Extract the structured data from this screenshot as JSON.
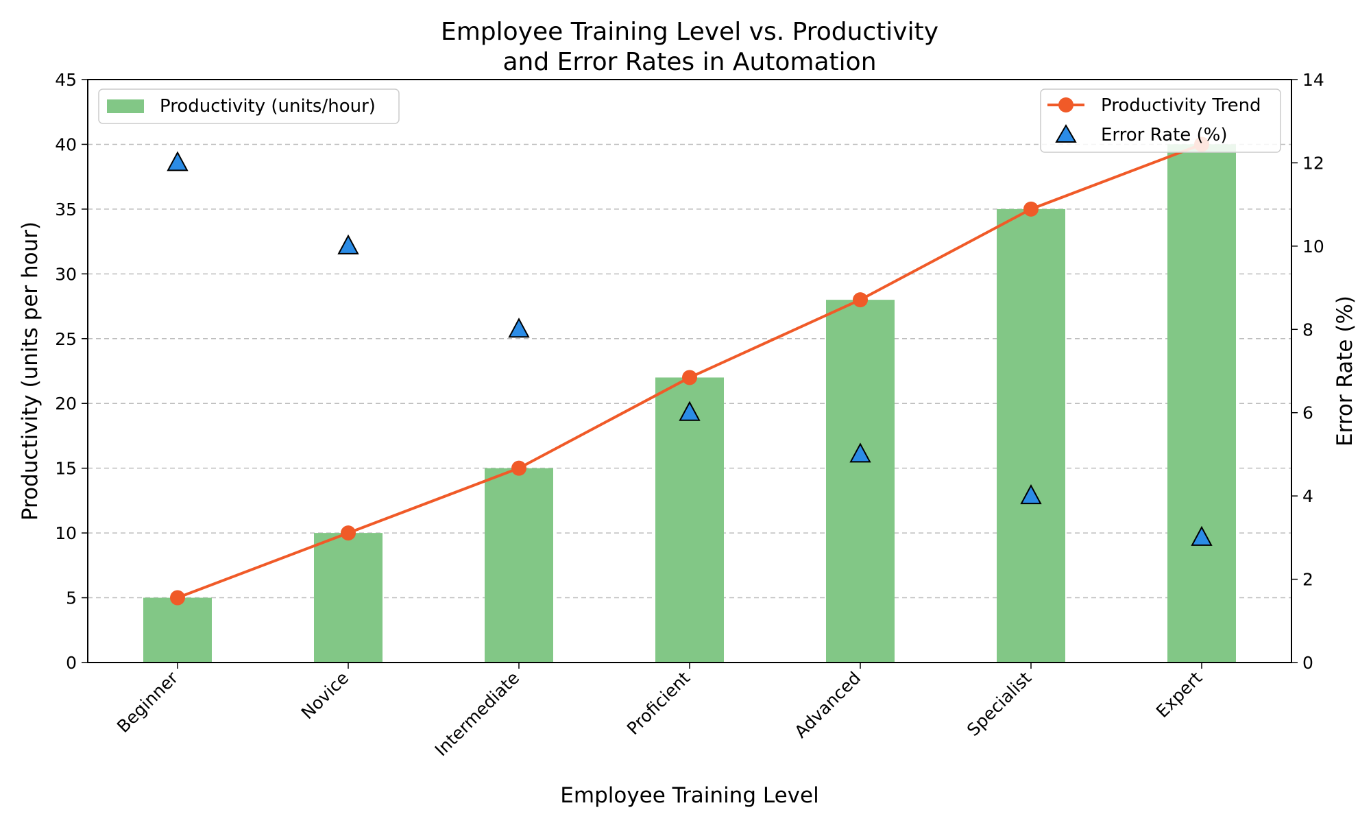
{
  "chart_data": {
    "type": "bar",
    "title_lines": [
      "Employee Training Level vs. Productivity",
      "and Error Rates in Automation"
    ],
    "xlabel": "Employee Training Level",
    "ylabel": "Productivity (units per hour)",
    "ylabel_right": "Error Rate (%)",
    "categories": [
      "Beginner",
      "Novice",
      "Intermediate",
      "Proficient",
      "Advanced",
      "Specialist",
      "Expert"
    ],
    "ylim": [
      0,
      45
    ],
    "yticks": [
      0,
      5,
      10,
      15,
      20,
      25,
      30,
      35,
      40,
      45
    ],
    "ylim_right": [
      0,
      14
    ],
    "yticks_right": [
      0,
      2,
      4,
      6,
      8,
      10,
      12,
      14
    ],
    "grid": "horizontal dashed",
    "series": [
      {
        "name": "Productivity (units/hour)",
        "kind": "bar",
        "axis": "left",
        "color": "#82c786",
        "values": [
          5,
          10,
          15,
          22,
          28,
          35,
          40
        ]
      },
      {
        "name": "Productivity Trend",
        "kind": "line",
        "axis": "left",
        "color": "#f05a28",
        "values": [
          5,
          10,
          15,
          22,
          28,
          35,
          40
        ]
      },
      {
        "name": "Error Rate (%)",
        "kind": "scatter",
        "marker": "triangle",
        "axis": "right",
        "color": "#2b8ce6",
        "values": [
          12,
          10,
          8,
          6,
          5,
          4,
          3
        ]
      }
    ],
    "legends": {
      "left": "top-left",
      "right": "top-right"
    }
  }
}
